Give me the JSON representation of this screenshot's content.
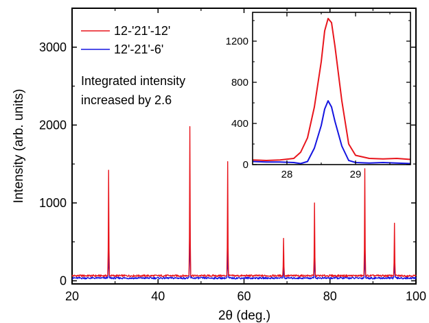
{
  "chart_data": [
    {
      "type": "line",
      "xlabel": "2θ (deg.)",
      "ylabel": "Intensity (arb. units)",
      "xlim": [
        20,
        100
      ],
      "ylim": [
        -40,
        3500
      ],
      "x_ticks": [
        "20",
        "40",
        "60",
        "80",
        "100"
      ],
      "y_ticks": [
        "0",
        "1000",
        "2000",
        "3000"
      ],
      "legend_position": "top-left",
      "grid": false,
      "annotation": [
        "Integrated intensity",
        "increased by 2.6"
      ],
      "baseline": [
        {
          "x": 20,
          "y": 60
        },
        {
          "x": 100,
          "y": 45
        }
      ],
      "series": [
        {
          "name": "12-'21'-12'",
          "color": "#e8141b",
          "baseline": 65,
          "peaks": [
            {
              "x": 28.5,
              "y": 1420
            },
            {
              "x": 47.4,
              "y": 1980
            },
            {
              "x": 56.2,
              "y": 1530
            },
            {
              "x": 69.2,
              "y": 545
            },
            {
              "x": 76.4,
              "y": 1000
            },
            {
              "x": 88.1,
              "y": 1440
            },
            {
              "x": 95.0,
              "y": 740
            }
          ]
        },
        {
          "name": "12'-21'-6'",
          "color": "#1414e0",
          "baseline": 35,
          "peaks": [
            {
              "x": 28.5,
              "y": 620
            },
            {
              "x": 47.4,
              "y": 1040
            },
            {
              "x": 56.2,
              "y": 590
            },
            {
              "x": 69.2,
              "y": 220
            },
            {
              "x": 76.4,
              "y": 450
            },
            {
              "x": 88.1,
              "y": 560
            },
            {
              "x": 95.0,
              "y": 350
            }
          ]
        }
      ]
    },
    {
      "type": "line",
      "inset": true,
      "xlim": [
        27.5,
        29.8
      ],
      "ylim": [
        0,
        1480
      ],
      "x_ticks": [
        "28",
        "29"
      ],
      "y_ticks": [
        "0",
        "400",
        "800",
        "1200"
      ],
      "series": [
        {
          "name": "12-'21'-12'",
          "color": "#e8141b",
          "x": [
            27.5,
            27.7,
            27.9,
            28.1,
            28.2,
            28.3,
            28.4,
            28.5,
            28.55,
            28.6,
            28.65,
            28.7,
            28.8,
            28.9,
            29.0,
            29.2,
            29.4,
            29.6,
            29.8
          ],
          "y": [
            45,
            40,
            45,
            60,
            120,
            260,
            560,
            1000,
            1300,
            1420,
            1380,
            1150,
            620,
            200,
            90,
            60,
            55,
            60,
            50
          ]
        },
        {
          "name": "12'-21'-6'",
          "color": "#1414e0",
          "x": [
            27.5,
            27.7,
            27.9,
            28.1,
            28.2,
            28.3,
            28.4,
            28.5,
            28.55,
            28.6,
            28.65,
            28.7,
            28.8,
            28.9,
            29.0,
            29.2,
            29.4,
            29.6,
            29.8
          ],
          "y": [
            30,
            25,
            25,
            20,
            10,
            30,
            160,
            380,
            540,
            620,
            560,
            420,
            180,
            40,
            20,
            15,
            20,
            15,
            10
          ]
        }
      ]
    }
  ]
}
